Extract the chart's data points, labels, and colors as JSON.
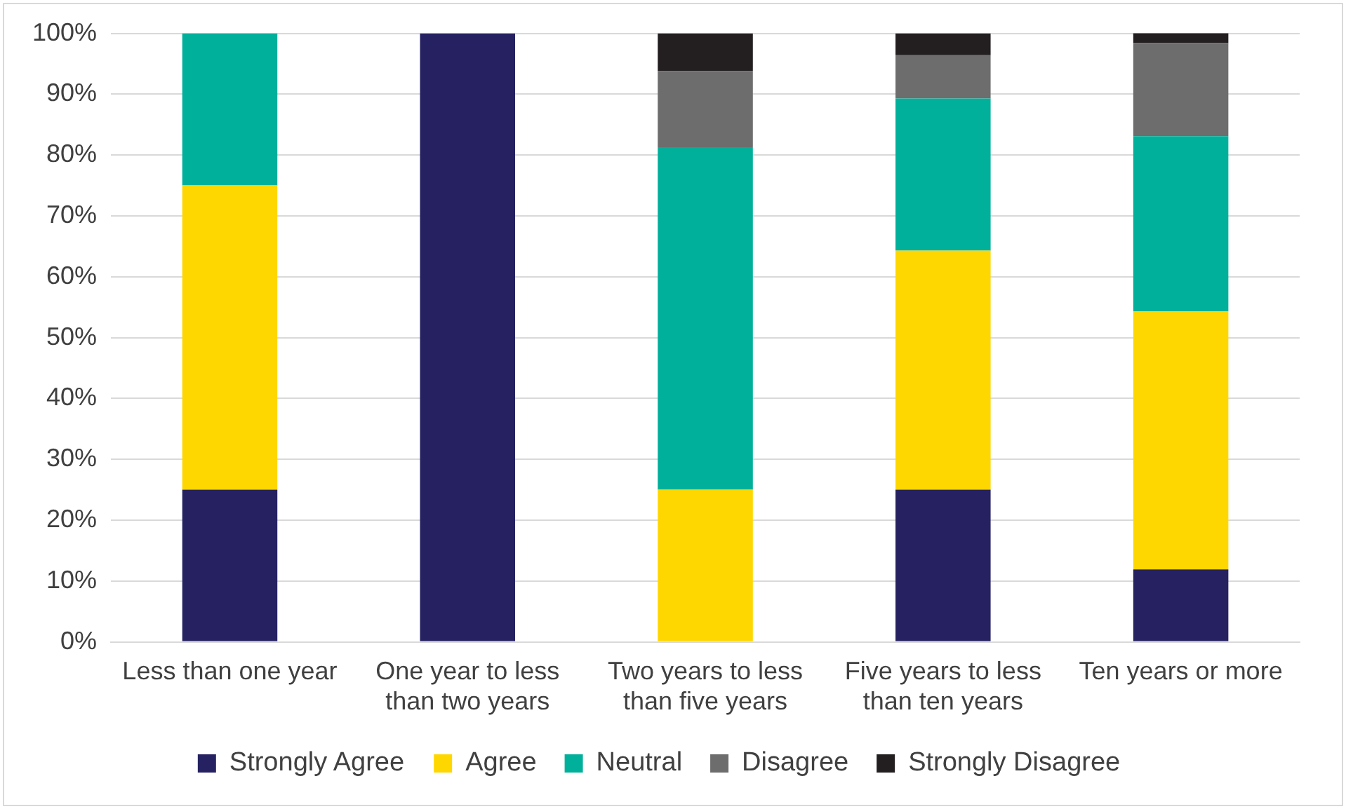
{
  "chart_data": {
    "type": "bar",
    "stacked": true,
    "categories": [
      "Less than one year",
      "One year to less than two years",
      "Two years to less than five years",
      "Five years to less than ten years",
      "Ten years or more"
    ],
    "series": [
      {
        "name": "Strongly Agree",
        "color": "#262262",
        "values": [
          25,
          100,
          0,
          25,
          11.9
        ]
      },
      {
        "name": "Agree",
        "color": "#ffd700",
        "values": [
          50,
          0,
          25,
          39.3,
          42.4
        ]
      },
      {
        "name": "Neutral",
        "color": "#00b09b",
        "values": [
          25,
          0,
          56.3,
          25,
          28.8
        ]
      },
      {
        "name": "Disagree",
        "color": "#6d6d6d",
        "values": [
          0,
          0,
          12.5,
          7.1,
          15.3
        ]
      },
      {
        "name": "Strongly Disagree",
        "color": "#231f20",
        "values": [
          0,
          0,
          6.2,
          3.6,
          1.7
        ]
      }
    ],
    "ylim": [
      0,
      100
    ],
    "yticks": [
      {
        "value": 0,
        "label": "0%"
      },
      {
        "value": 10,
        "label": "10%"
      },
      {
        "value": 20,
        "label": "20%"
      },
      {
        "value": 30,
        "label": "30%"
      },
      {
        "value": 40,
        "label": "40%"
      },
      {
        "value": 50,
        "label": "50%"
      },
      {
        "value": 60,
        "label": "60%"
      },
      {
        "value": 70,
        "label": "70%"
      },
      {
        "value": 80,
        "label": "80%"
      },
      {
        "value": 90,
        "label": "90%"
      },
      {
        "value": 100,
        "label": "100%"
      }
    ],
    "grid": "y",
    "legend": "bottom"
  }
}
